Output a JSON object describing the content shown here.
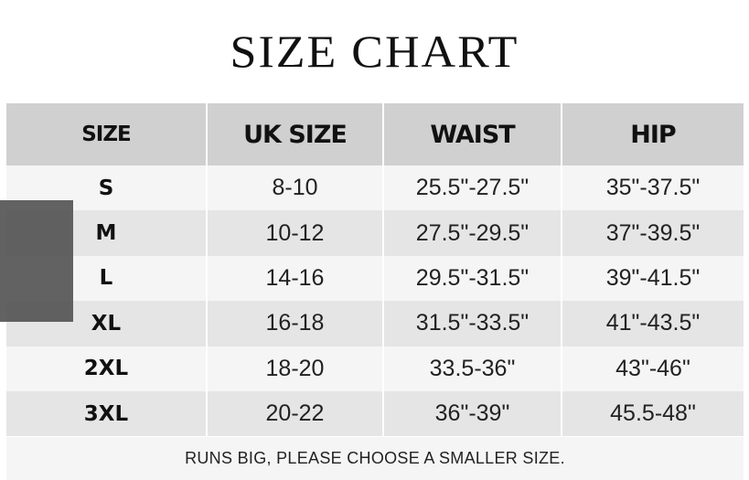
{
  "title": "SIZE CHART",
  "table": {
    "headers": [
      "SIZE",
      "UK SIZE",
      "WAIST",
      "HIP"
    ],
    "rows": [
      [
        "S",
        "8-10",
        "25.5\"-27.5\"",
        "35\"-37.5\""
      ],
      [
        "M",
        "10-12",
        "27.5\"-29.5\"",
        "37\"-39.5\""
      ],
      [
        "L",
        "14-16",
        "29.5\"-31.5\"",
        "39\"-41.5\""
      ],
      [
        "XL",
        "16-18",
        "31.5\"-33.5\"",
        "41\"-43.5\""
      ],
      [
        "2XL",
        "18-20",
        "33.5-36\"",
        "43\"-46\""
      ],
      [
        "3XL",
        "20-22",
        "36\"-39\"",
        "45.5-48\""
      ]
    ]
  },
  "footer_note": "RUNS BIG, PLEASE CHOOSE A SMALLER SIZE.",
  "colors": {
    "header_bg": "#d0d0d0",
    "row_light": "#f5f5f5",
    "row_dark": "#e5e5e5",
    "overlay": "#555555"
  }
}
